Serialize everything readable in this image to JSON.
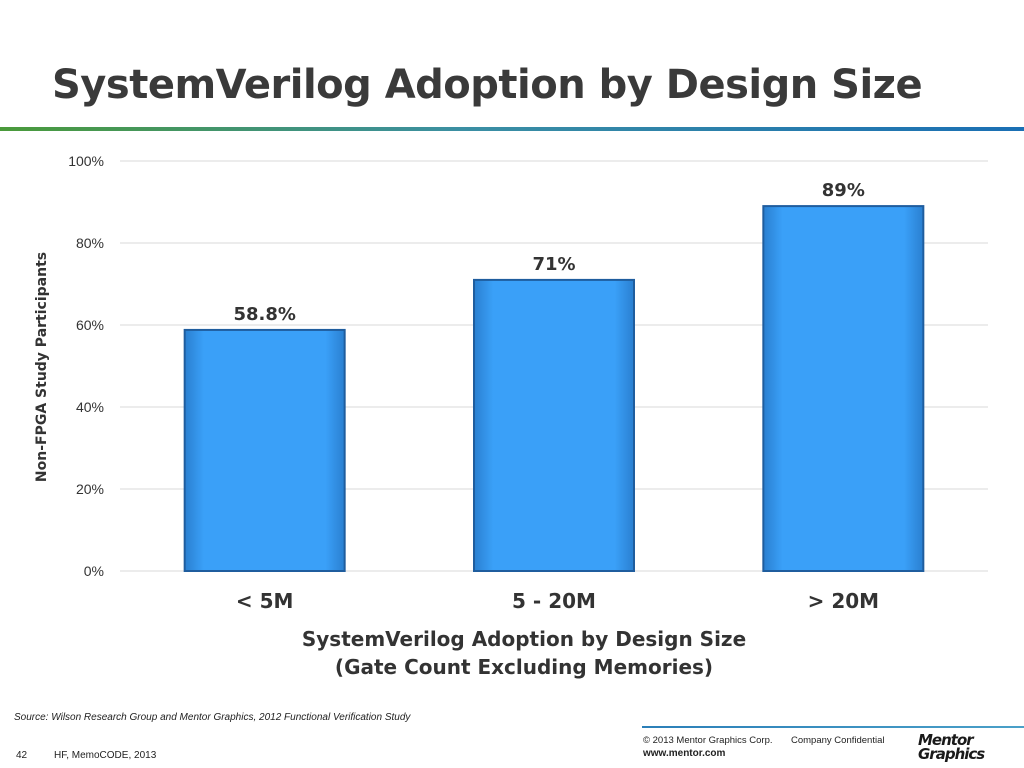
{
  "slide": {
    "title": "SystemVerilog Adoption by Design Size"
  },
  "chart_data": {
    "type": "bar",
    "categories": [
      "< 5M",
      "5 - 20M",
      "> 20M"
    ],
    "values": [
      58.8,
      71,
      89
    ],
    "data_labels": [
      "58.8%",
      "71%",
      "89%"
    ],
    "title": "",
    "xlabel": "SystemVerilog Adoption by Design Size",
    "xlabel_line2": "(Gate Count Excluding Memories)",
    "ylabel": "Non-FPGA Study Participants",
    "ylim": [
      0,
      100
    ],
    "yticks": [
      0,
      20,
      40,
      60,
      80,
      100
    ],
    "ytick_labels": [
      "0%",
      "20%",
      "40%",
      "60%",
      "80%",
      "100%"
    ],
    "grid": true,
    "bar_color": "#3aa0f8",
    "bar_edge_color": "#1f5d9e"
  },
  "footer": {
    "source": "Source: Wilson Research Group and Mentor Graphics, 2012 Functional Verification Study",
    "copyright": "© 2013 Mentor Graphics Corp.",
    "confidential": "Company Confidential",
    "url": "www.mentor.com",
    "page_number": "42",
    "event": "HF, MemoCODE, 2013",
    "logo_line1": "Mentor",
    "logo_line2": "Graphics"
  }
}
